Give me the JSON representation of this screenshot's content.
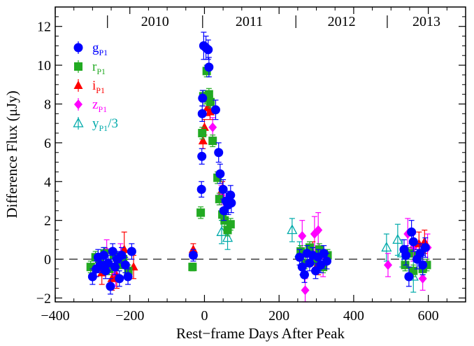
{
  "chart_data": {
    "type": "scatter",
    "xlabel": "Rest−frame Days After Peak",
    "ylabel": "Difference Flux (μJy)",
    "xlim": [
      -400,
      700
    ],
    "ylim": [
      -2.2,
      13
    ],
    "xticks": [
      -400,
      -200,
      0,
      200,
      400,
      600
    ],
    "xtick_labels": [
      "−400",
      "−200",
      "0",
      "200",
      "400",
      "600"
    ],
    "yticks": [
      -2,
      0,
      2,
      4,
      6,
      8,
      10,
      12
    ],
    "ytick_labels": [
      "−2",
      "0",
      "2",
      "4",
      "6",
      "8",
      "10",
      "12"
    ],
    "reference_line": {
      "y": 0,
      "style": "dashed"
    },
    "legend_position": "top-left",
    "year_markers": {
      "dividers_x": [
        -260,
        -5,
        245,
        490
      ],
      "labels": [
        {
          "text": "2010",
          "x_from": -260,
          "x_to": -5
        },
        {
          "text": "2011",
          "x_from": -5,
          "x_to": 245
        },
        {
          "text": "2012",
          "x_from": 245,
          "x_to": 490
        },
        {
          "text": "2013",
          "x_from": 490,
          "x_to": 700
        }
      ]
    },
    "series": [
      {
        "name": "g",
        "subscript": "P1",
        "suffix": "",
        "marker": "circle",
        "color": "#0000ff",
        "points": [
          {
            "x": -300,
            "y": -0.9,
            "e": 0.4
          },
          {
            "x": -290,
            "y": -0.5,
            "e": 0.4
          },
          {
            "x": -285,
            "y": 0.1,
            "e": 0.4
          },
          {
            "x": -278,
            "y": -0.3,
            "e": 0.4
          },
          {
            "x": -270,
            "y": 0.2,
            "e": 0.4
          },
          {
            "x": -265,
            "y": -0.6,
            "e": 0.4
          },
          {
            "x": -258,
            "y": -0.2,
            "e": 0.4
          },
          {
            "x": -252,
            "y": -1.4,
            "e": 0.4
          },
          {
            "x": -246,
            "y": 0.4,
            "e": 0.4
          },
          {
            "x": -240,
            "y": -0.4,
            "e": 0.4
          },
          {
            "x": -234,
            "y": 0.0,
            "e": 0.4
          },
          {
            "x": -228,
            "y": -1.0,
            "e": 0.4
          },
          {
            "x": -222,
            "y": 0.2,
            "e": 0.4
          },
          {
            "x": -212,
            "y": -0.3,
            "e": 0.4
          },
          {
            "x": -205,
            "y": -0.9,
            "e": 0.4
          },
          {
            "x": -195,
            "y": 0.4,
            "e": 0.4
          },
          {
            "x": -30,
            "y": 0.2,
            "e": 0.3
          },
          {
            "x": -8,
            "y": 3.6,
            "e": 0.4
          },
          {
            "x": -7,
            "y": 5.3,
            "e": 0.4
          },
          {
            "x": -6,
            "y": 7.5,
            "e": 0.4
          },
          {
            "x": -5,
            "y": 8.3,
            "e": 0.4
          },
          {
            "x": -2,
            "y": 11.0,
            "e": 0.7
          },
          {
            "x": 4,
            "y": 10.9,
            "e": 0.6
          },
          {
            "x": 10,
            "y": 10.8,
            "e": 0.5
          },
          {
            "x": 12,
            "y": 9.9,
            "e": 0.5
          },
          {
            "x": 30,
            "y": 7.7,
            "e": 0.5
          },
          {
            "x": 38,
            "y": 5.5,
            "e": 0.5
          },
          {
            "x": 42,
            "y": 4.4,
            "e": 0.5
          },
          {
            "x": 50,
            "y": 3.6,
            "e": 0.5
          },
          {
            "x": 52,
            "y": 2.5,
            "e": 0.5
          },
          {
            "x": 58,
            "y": 3.0,
            "e": 0.5
          },
          {
            "x": 64,
            "y": 2.8,
            "e": 0.5
          },
          {
            "x": 70,
            "y": 3.3,
            "e": 0.5
          },
          {
            "x": 72,
            "y": 2.9,
            "e": 0.5
          },
          {
            "x": 255,
            "y": 0.1,
            "e": 0.4
          },
          {
            "x": 262,
            "y": -0.4,
            "e": 0.4
          },
          {
            "x": 268,
            "y": -0.8,
            "e": 0.4
          },
          {
            "x": 275,
            "y": 0.3,
            "e": 0.4
          },
          {
            "x": 282,
            "y": -0.2,
            "e": 0.4
          },
          {
            "x": 290,
            "y": 0.2,
            "e": 0.4
          },
          {
            "x": 298,
            "y": -0.6,
            "e": 0.4
          },
          {
            "x": 305,
            "y": 0.1,
            "e": 0.4
          },
          {
            "x": 312,
            "y": -0.3,
            "e": 0.4
          },
          {
            "x": 320,
            "y": 0.3,
            "e": 0.4
          },
          {
            "x": 328,
            "y": -0.1,
            "e": 0.4
          },
          {
            "x": 535,
            "y": 0.5,
            "e": 0.5
          },
          {
            "x": 540,
            "y": 0.2,
            "e": 0.5
          },
          {
            "x": 548,
            "y": -0.9,
            "e": 0.5
          },
          {
            "x": 555,
            "y": 1.4,
            "e": 0.6
          },
          {
            "x": 560,
            "y": 0.9,
            "e": 0.5
          },
          {
            "x": 570,
            "y": 0.0,
            "e": 0.5
          },
          {
            "x": 578,
            "y": 0.3,
            "e": 0.5
          },
          {
            "x": 585,
            "y": -0.3,
            "e": 0.5
          },
          {
            "x": 592,
            "y": 0.6,
            "e": 0.5
          }
        ]
      },
      {
        "name": "r",
        "subscript": "P1",
        "suffix": "",
        "marker": "square",
        "color": "#22aa22",
        "points": [
          {
            "x": -305,
            "y": -0.4,
            "e": 0.3
          },
          {
            "x": -292,
            "y": 0.1,
            "e": 0.3
          },
          {
            "x": -280,
            "y": -0.2,
            "e": 0.3
          },
          {
            "x": -268,
            "y": 0.3,
            "e": 0.3
          },
          {
            "x": -255,
            "y": -0.5,
            "e": 0.3
          },
          {
            "x": -243,
            "y": 0.2,
            "e": 0.3
          },
          {
            "x": -230,
            "y": -0.3,
            "e": 0.3
          },
          {
            "x": -218,
            "y": 0.0,
            "e": 0.3
          },
          {
            "x": -204,
            "y": -0.6,
            "e": 0.3
          },
          {
            "x": -32,
            "y": -0.4,
            "e": 0.2
          },
          {
            "x": -10,
            "y": 2.4,
            "e": 0.3
          },
          {
            "x": -6,
            "y": 6.5,
            "e": 0.3
          },
          {
            "x": -3,
            "y": 8.4,
            "e": 0.3
          },
          {
            "x": 2,
            "y": 8.3,
            "e": 0.3
          },
          {
            "x": 6,
            "y": 9.7,
            "e": 0.3
          },
          {
            "x": 12,
            "y": 8.5,
            "e": 0.3
          },
          {
            "x": 16,
            "y": 8.1,
            "e": 0.3
          },
          {
            "x": 22,
            "y": 6.1,
            "e": 0.3
          },
          {
            "x": 35,
            "y": 4.2,
            "e": 0.3
          },
          {
            "x": 40,
            "y": 3.1,
            "e": 0.3
          },
          {
            "x": 48,
            "y": 2.3,
            "e": 0.3
          },
          {
            "x": 54,
            "y": 2.0,
            "e": 0.3
          },
          {
            "x": 62,
            "y": 1.5,
            "e": 0.3
          },
          {
            "x": 70,
            "y": 1.8,
            "e": 0.3
          },
          {
            "x": 258,
            "y": 0.4,
            "e": 0.3
          },
          {
            "x": 270,
            "y": -0.2,
            "e": 0.3
          },
          {
            "x": 282,
            "y": 0.6,
            "e": 0.3
          },
          {
            "x": 295,
            "y": 0.0,
            "e": 0.3
          },
          {
            "x": 308,
            "y": 0.5,
            "e": 0.3
          },
          {
            "x": 318,
            "y": -0.4,
            "e": 0.3
          },
          {
            "x": 330,
            "y": 0.2,
            "e": 0.3
          },
          {
            "x": 538,
            "y": -0.3,
            "e": 0.3
          },
          {
            "x": 548,
            "y": 0.3,
            "e": 0.3
          },
          {
            "x": 560,
            "y": -0.6,
            "e": 0.3
          },
          {
            "x": 572,
            "y": 0.2,
            "e": 0.3
          },
          {
            "x": 585,
            "y": -0.5,
            "e": 0.3
          },
          {
            "x": 596,
            "y": -0.3,
            "e": 0.3
          }
        ]
      },
      {
        "name": "i",
        "subscript": "P1",
        "suffix": "",
        "marker": "triangle",
        "color": "#ff0000",
        "points": [
          {
            "x": -275,
            "y": -0.7,
            "e": 0.6
          },
          {
            "x": -248,
            "y": -1.0,
            "e": 0.6
          },
          {
            "x": -235,
            "y": -0.9,
            "e": 0.6
          },
          {
            "x": -215,
            "y": 0.5,
            "e": 0.9
          },
          {
            "x": -190,
            "y": -0.4,
            "e": 0.6
          },
          {
            "x": -30,
            "y": 0.5,
            "e": 0.3
          },
          {
            "x": -4,
            "y": 6.1,
            "e": 0.4
          },
          {
            "x": 0,
            "y": 6.8,
            "e": 0.4
          },
          {
            "x": 8,
            "y": 7.8,
            "e": 0.4
          },
          {
            "x": 15,
            "y": 7.6,
            "e": 0.4
          },
          {
            "x": 48,
            "y": 3.6,
            "e": 0.4
          },
          {
            "x": 290,
            "y": 0.3,
            "e": 0.6
          },
          {
            "x": 305,
            "y": -0.2,
            "e": 0.6
          },
          {
            "x": 575,
            "y": 0.8,
            "e": 0.6
          },
          {
            "x": 590,
            "y": 0.9,
            "e": 0.6
          }
        ]
      },
      {
        "name": "z",
        "subscript": "P1",
        "suffix": "",
        "marker": "diamond",
        "color": "#ff00ff",
        "points": [
          {
            "x": -262,
            "y": 0.4,
            "e": 0.6
          },
          {
            "x": -238,
            "y": -0.8,
            "e": 0.6
          },
          {
            "x": -225,
            "y": 0.2,
            "e": 0.6
          },
          {
            "x": 22,
            "y": 6.8,
            "e": 0.5
          },
          {
            "x": 45,
            "y": 3.3,
            "e": 0.5
          },
          {
            "x": 262,
            "y": 1.2,
            "e": 0.8
          },
          {
            "x": 270,
            "y": -1.6,
            "e": 0.6
          },
          {
            "x": 295,
            "y": 1.3,
            "e": 0.9
          },
          {
            "x": 305,
            "y": 1.5,
            "e": 0.9
          },
          {
            "x": 318,
            "y": -0.3,
            "e": 0.6
          },
          {
            "x": 492,
            "y": -0.3,
            "e": 0.6
          },
          {
            "x": 545,
            "y": 1.3,
            "e": 0.8
          },
          {
            "x": 560,
            "y": 0.6,
            "e": 0.7
          },
          {
            "x": 585,
            "y": -1.0,
            "e": 0.6
          },
          {
            "x": 598,
            "y": 0.6,
            "e": 0.7
          }
        ]
      },
      {
        "name": "y",
        "subscript": "P1",
        "suffix": "/3",
        "marker": "triangle-open",
        "color": "#00aaaa",
        "points": [
          {
            "x": 46,
            "y": 1.4,
            "e": 0.6
          },
          {
            "x": 62,
            "y": 1.1,
            "e": 0.6
          },
          {
            "x": 235,
            "y": 1.5,
            "e": 0.6
          },
          {
            "x": 255,
            "y": 0.3,
            "e": 0.6
          },
          {
            "x": 488,
            "y": 0.6,
            "e": 0.7
          },
          {
            "x": 518,
            "y": 1.0,
            "e": 0.8
          },
          {
            "x": 530,
            "y": 0.3,
            "e": 0.7
          },
          {
            "x": 560,
            "y": -0.9,
            "e": 0.8
          }
        ]
      }
    ]
  }
}
